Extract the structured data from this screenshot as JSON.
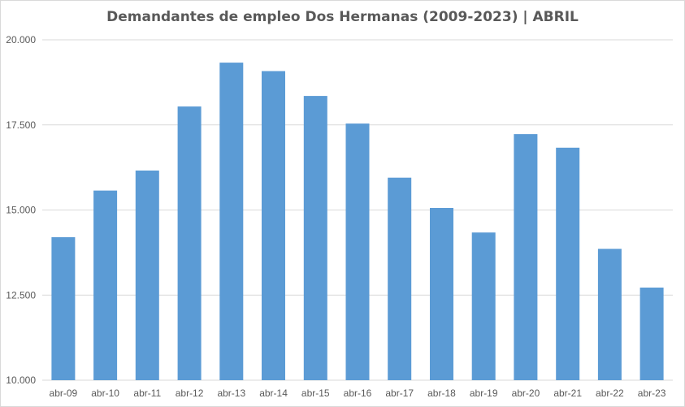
{
  "chart_data": {
    "type": "bar",
    "title": "Demandantes de empleo Dos Hermanas (2009-2023) | ABRIL",
    "xlabel": "",
    "ylabel": "",
    "categories": [
      "abr-09",
      "abr-10",
      "abr-11",
      "abr-12",
      "abr-13",
      "abr-14",
      "abr-15",
      "abr-16",
      "abr-17",
      "abr-18",
      "abr-19",
      "abr-20",
      "abr-21",
      "abr-22",
      "abr-23"
    ],
    "values": [
      14200,
      15570,
      16160,
      18040,
      19330,
      19080,
      18350,
      17540,
      15950,
      15060,
      14340,
      17230,
      16830,
      13860,
      12720
    ],
    "ylim": [
      10000,
      20000
    ],
    "yticks": [
      10000,
      12500,
      15000,
      17500,
      20000
    ],
    "ytick_labels": [
      "10.000",
      "12.500",
      "15.000",
      "17.500",
      "20.000"
    ],
    "grid": true,
    "legend": "none",
    "bar_color": "#5b9bd5",
    "grid_color": "#d9d9d9"
  }
}
